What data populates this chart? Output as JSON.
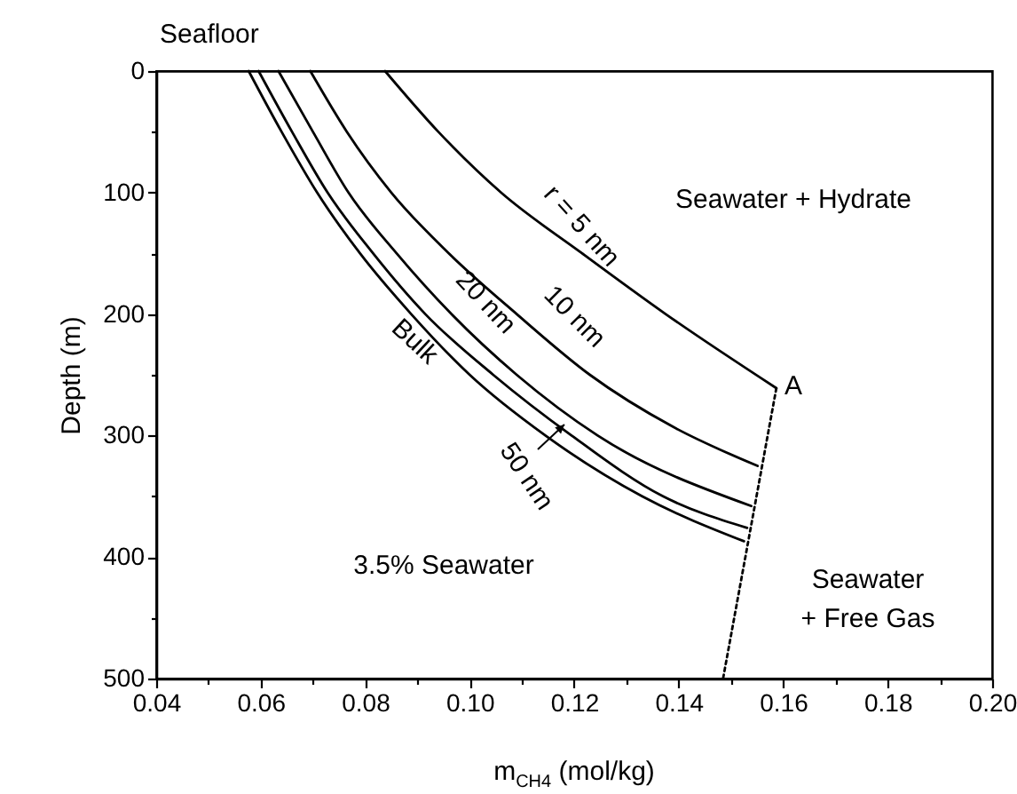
{
  "chart_data": {
    "type": "line",
    "xlabel": "m$_{CH4}$ (mol/kg)",
    "ylabel": "Depth (m)",
    "line_style": "solid",
    "xlim": [
      0.04,
      0.2
    ],
    "ylim": [
      500,
      0
    ],
    "xticks": [
      0.04,
      {
        "value": 0.05,
        "label": null
      },
      0.06,
      {
        "value": 0.07,
        "label": null
      },
      0.08,
      {
        "value": 0.09,
        "label": null
      },
      {
        "value": 0.1,
        "label": "0.10"
      },
      {
        "value": 0.11,
        "label": null
      },
      0.12,
      {
        "value": 0.13,
        "label": null
      },
      0.14,
      {
        "value": 0.15,
        "label": null
      },
      0.16,
      {
        "value": 0.17,
        "label": null
      },
      0.18,
      {
        "value": 0.19,
        "label": null
      },
      {
        "value": 0.2,
        "label": "0.20"
      }
    ],
    "yticks": [
      0,
      {
        "value": 50,
        "label": null
      },
      100,
      {
        "value": 150,
        "label": null
      },
      200,
      {
        "value": 250,
        "label": null
      },
      300,
      {
        "value": 350,
        "label": null
      },
      400,
      {
        "value": 450,
        "label": null
      },
      500
    ],
    "series": [
      {
        "name": "r = 5 nm",
        "color": "#000000",
        "x": [
          0.0838,
          0.094,
          0.106,
          0.1215,
          0.1375,
          0.1587
        ],
        "values": [
          0,
          50,
          100,
          150,
          200,
          261
        ]
      },
      {
        "name": "10 nm",
        "color": "#000000",
        "x": [
          0.0695,
          0.0765,
          0.085,
          0.096,
          0.109,
          0.123,
          0.139,
          0.1551
        ],
        "values": [
          0,
          50,
          100,
          150,
          200,
          250,
          293,
          325
        ]
      },
      {
        "name": "20 nm",
        "color": "#000000",
        "x": [
          0.0634,
          0.07,
          0.0768,
          0.086,
          0.0965,
          0.109,
          0.1245,
          0.1539
        ],
        "values": [
          0,
          50,
          100,
          150,
          200,
          250,
          300,
          358
        ]
      },
      {
        "name": "50 nm",
        "color": "#000000",
        "x": [
          0.0596,
          0.066,
          0.0728,
          0.0815,
          0.0915,
          0.1045,
          0.1195,
          0.137,
          0.1531
        ],
        "values": [
          0,
          50,
          100,
          150,
          200,
          250,
          300,
          350,
          376
        ]
      },
      {
        "name": "Bulk",
        "color": "#000000",
        "x": [
          0.0577,
          0.064,
          0.0708,
          0.079,
          0.0888,
          0.1,
          0.1145,
          0.133,
          0.1525
        ],
        "values": [
          0,
          50,
          100,
          150,
          200,
          250,
          300,
          350,
          387
        ]
      },
      {
        "color": "#000000",
        "line_style": "dotted",
        "x": [
          0.1587,
          0.1485
        ],
        "values": [
          261,
          500
        ]
      }
    ],
    "annotations": [
      "Seafloor",
      "A",
      "Seawater + Hydrate",
      "Seawater\n+ Free Gas",
      "3.5% Seawater"
    ]
  }
}
